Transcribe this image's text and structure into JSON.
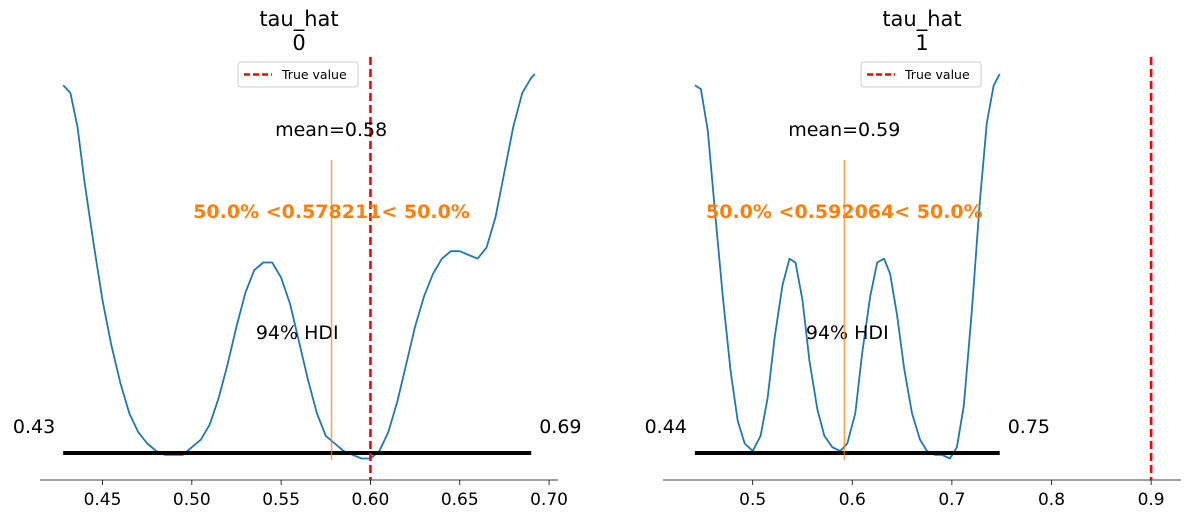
{
  "chart_data": [
    {
      "type": "line",
      "title": "tau_hat",
      "subtitle": "0",
      "xlim": [
        0.415,
        0.705
      ],
      "ticks": [
        {
          "value": 0.45,
          "label": "0.45"
        },
        {
          "value": 0.5,
          "label": "0.50"
        },
        {
          "value": 0.55,
          "label": "0.55"
        },
        {
          "value": 0.6,
          "label": "0.60"
        },
        {
          "value": 0.65,
          "label": "0.65"
        },
        {
          "value": 0.7,
          "label": "0.70"
        }
      ],
      "density": {
        "x": [
          0.428,
          0.432,
          0.436,
          0.44,
          0.445,
          0.45,
          0.455,
          0.46,
          0.465,
          0.47,
          0.475,
          0.48,
          0.485,
          0.49,
          0.495,
          0.5,
          0.505,
          0.51,
          0.515,
          0.52,
          0.525,
          0.53,
          0.535,
          0.54,
          0.545,
          0.55,
          0.555,
          0.56,
          0.565,
          0.57,
          0.575,
          0.58,
          0.585,
          0.59,
          0.595,
          0.6,
          0.605,
          0.61,
          0.615,
          0.62,
          0.625,
          0.63,
          0.635,
          0.64,
          0.645,
          0.65,
          0.655,
          0.66,
          0.665,
          0.67,
          0.675,
          0.68,
          0.685,
          0.69,
          0.692
        ],
        "y": [
          0.97,
          0.95,
          0.86,
          0.71,
          0.55,
          0.4,
          0.28,
          0.18,
          0.1,
          0.05,
          0.02,
          0.0,
          -0.01,
          -0.01,
          -0.01,
          0.01,
          0.03,
          0.07,
          0.14,
          0.23,
          0.33,
          0.42,
          0.48,
          0.5,
          0.5,
          0.46,
          0.39,
          0.29,
          0.19,
          0.1,
          0.04,
          0.02,
          0.0,
          -0.01,
          -0.02,
          -0.02,
          0.0,
          0.05,
          0.13,
          0.23,
          0.33,
          0.41,
          0.47,
          0.51,
          0.53,
          0.53,
          0.52,
          0.51,
          0.54,
          0.62,
          0.74,
          0.86,
          0.95,
          0.99,
          1.0
        ]
      },
      "ymax": 1.0,
      "hdi": {
        "low": 0.428,
        "high": 0.69,
        "low_label": "0.43",
        "high_label": "0.69",
        "label": "94% HDI"
      },
      "point_estimate": {
        "value": 0.578,
        "label": "mean=0.58"
      },
      "ref_line": {
        "value": 0.578211,
        "label": "50.0% <0.578211< 50.0%",
        "color": "#ff7f0e"
      },
      "true_value": {
        "value": 0.6,
        "label": "True value",
        "color": "#ff0000"
      }
    },
    {
      "type": "line",
      "title": "tau_hat",
      "subtitle": "1",
      "xlim": [
        0.41,
        0.93
      ],
      "ticks": [
        {
          "value": 0.5,
          "label": "0.5"
        },
        {
          "value": 0.6,
          "label": "0.6"
        },
        {
          "value": 0.7,
          "label": "0.7"
        },
        {
          "value": 0.8,
          "label": "0.8"
        },
        {
          "value": 0.9,
          "label": "0.9"
        }
      ],
      "density": {
        "x": [
          0.442,
          0.448,
          0.455,
          0.462,
          0.47,
          0.478,
          0.485,
          0.492,
          0.5,
          0.508,
          0.515,
          0.522,
          0.53,
          0.537,
          0.543,
          0.55,
          0.557,
          0.565,
          0.572,
          0.58,
          0.588,
          0.595,
          0.603,
          0.61,
          0.618,
          0.625,
          0.632,
          0.638,
          0.645,
          0.652,
          0.66,
          0.668,
          0.675,
          0.683,
          0.69,
          0.698,
          0.705,
          0.712,
          0.72,
          0.728,
          0.735,
          0.742,
          0.748
        ],
        "y": [
          0.97,
          0.96,
          0.85,
          0.64,
          0.41,
          0.21,
          0.08,
          0.02,
          0.0,
          0.04,
          0.14,
          0.3,
          0.44,
          0.51,
          0.5,
          0.4,
          0.24,
          0.11,
          0.04,
          0.01,
          0.0,
          0.02,
          0.1,
          0.26,
          0.41,
          0.5,
          0.51,
          0.47,
          0.36,
          0.22,
          0.1,
          0.03,
          0.0,
          -0.01,
          -0.01,
          -0.02,
          0.01,
          0.12,
          0.37,
          0.66,
          0.87,
          0.97,
          1.0
        ]
      },
      "ymax": 1.0,
      "hdi": {
        "low": 0.442,
        "high": 0.748,
        "low_label": "0.44",
        "high_label": "0.75",
        "label": "94% HDI"
      },
      "point_estimate": {
        "value": 0.592,
        "label": "mean=0.59"
      },
      "ref_line": {
        "value": 0.592064,
        "label": "50.0% <0.592064< 50.0%",
        "color": "#ff7f0e"
      },
      "true_value": {
        "value": 0.9,
        "label": "True value",
        "color": "#ff0000"
      }
    }
  ],
  "colors": {
    "density": "#1f77b4",
    "hdi": "#000000",
    "reference": "#ff7f0e",
    "true_value": "#ff0000"
  }
}
